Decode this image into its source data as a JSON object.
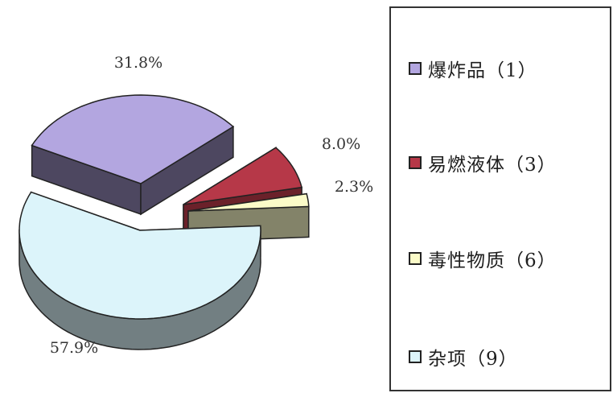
{
  "chart_data": {
    "type": "pie",
    "style": "3d-exploded",
    "title": "",
    "slices": [
      {
        "label": "爆炸品（1）",
        "value": 31.8,
        "display": "31.8%",
        "color": "#b3a6e0"
      },
      {
        "label": "易燃液体（3）",
        "value": 8.0,
        "display": "8.0%",
        "color": "#b63848"
      },
      {
        "label": "毒性物质（6）",
        "value": 2.3,
        "display": "2.3%",
        "color": "#fbfbc8"
      },
      {
        "label": "杂项（9）",
        "value": 57.9,
        "display": "57.9%",
        "color": "#dcf4fa"
      }
    ],
    "legend_position": "right"
  }
}
